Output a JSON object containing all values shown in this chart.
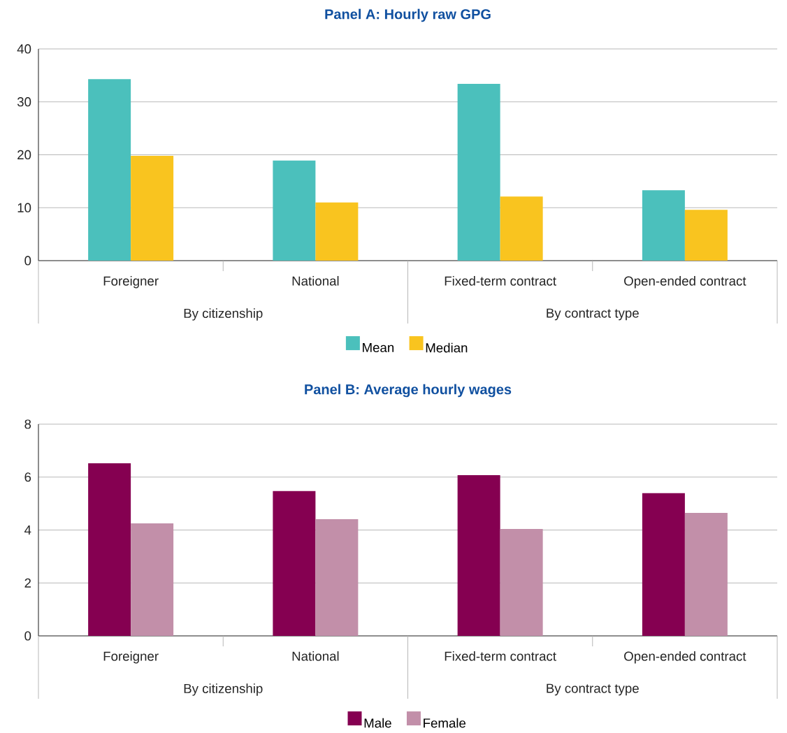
{
  "chart_data": [
    {
      "type": "bar",
      "title": "Panel A: Hourly raw GPG",
      "categories": [
        "Foreigner",
        "National",
        "Fixed-term contract",
        "Open-ended contract"
      ],
      "series": [
        {
          "name": "Mean",
          "color": "#4bc0bc",
          "values": [
            34.3,
            18.9,
            33.4,
            13.3
          ]
        },
        {
          "name": "Median",
          "color": "#f9c41f",
          "values": [
            19.8,
            11.0,
            12.1,
            9.6
          ]
        }
      ],
      "ylim": [
        0,
        40
      ],
      "yticks": [
        0,
        10,
        20,
        30,
        40
      ],
      "grid": "y",
      "legend": "bottom",
      "annotations": [
        "By citizenship",
        "By contract type"
      ]
    },
    {
      "type": "bar",
      "title": "Panel B: Average hourly wages",
      "categories": [
        "Foreigner",
        "National",
        "Fixed-term contract",
        "Open-ended contract"
      ],
      "series": [
        {
          "name": "Male",
          "color": "#850051",
          "values": [
            6.52,
            5.47,
            6.07,
            5.39
          ]
        },
        {
          "name": "Female",
          "color": "#c28fa9",
          "values": [
            4.25,
            4.41,
            4.04,
            4.65
          ]
        }
      ],
      "ylim": [
        0,
        8
      ],
      "yticks": [
        0,
        2,
        4,
        6,
        8
      ],
      "grid": "y",
      "legend": "bottom",
      "annotations": [
        "By citizenship",
        "By contract type"
      ]
    }
  ]
}
